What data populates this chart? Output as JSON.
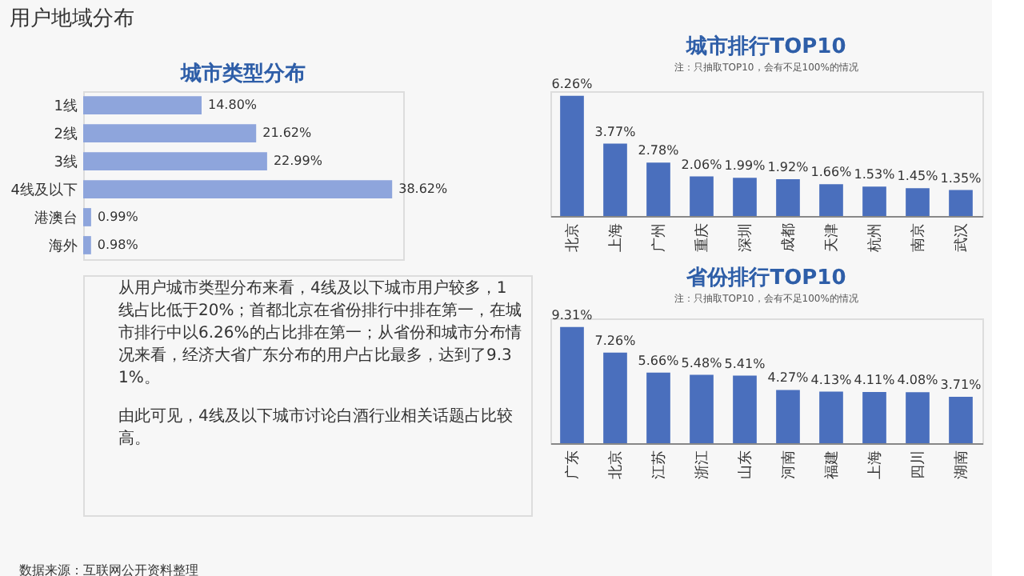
{
  "chart_data": [
    {
      "type": "bar",
      "orientation": "horizontal",
      "title": "城市类型分布",
      "categories": [
        "1线",
        "2线",
        "3线",
        "4线及以下",
        "港澳台",
        "海外"
      ],
      "values": [
        14.8,
        21.62,
        22.99,
        38.62,
        0.99,
        0.98
      ],
      "value_labels": [
        "14.80%",
        "21.62%",
        "22.99%",
        "38.62%",
        "0.99%",
        "0.98%"
      ],
      "color": "#8ea5dc",
      "tick_labels": "y",
      "annotations": [
        "用户地域分布",
        "从用户城市类型分布来看，4线及以下城市用户较多，1线占比低于20%；首都北京在省份排行中排在第一，在城市排行中以6.26%的占比排在第一；从省份和城市分布情况来看，经济大省广东分布的用户占比最多，达到了9.31%。",
        "由此可见，4线及以下城市讨论白酒行业相关话题占比较高。",
        "数据来源：互联网公开资料整理"
      ]
    },
    {
      "type": "bar",
      "title": "城市排行TOP10",
      "categories": [
        "北京",
        "上海",
        "广州",
        "重庆",
        "深圳",
        "成都",
        "天津",
        "杭州",
        "南京",
        "武汉"
      ],
      "values": [
        6.26,
        3.77,
        2.78,
        2.06,
        1.99,
        1.92,
        1.66,
        1.53,
        1.45,
        1.35
      ],
      "value_labels": [
        "6.26%",
        "3.77%",
        "2.78%",
        "2.06%",
        "1.99%",
        "1.92%",
        "1.66%",
        "1.53%",
        "1.45%",
        "1.35%"
      ],
      "color": "#4a6fbd",
      "tick_labels": "x",
      "annotations": [
        "注：只抽取TOP10，会有不足100%的情况"
      ]
    },
    {
      "type": "bar",
      "title": "省份排行TOP10",
      "categories": [
        "广东",
        "北京",
        "江苏",
        "浙江",
        "山东",
        "河南",
        "福建",
        "上海",
        "四川",
        "湖南"
      ],
      "values": [
        9.31,
        7.26,
        5.66,
        5.48,
        5.41,
        4.27,
        4.13,
        4.11,
        4.08,
        3.71
      ],
      "value_labels": [
        "9.31%",
        "7.26%",
        "5.66%",
        "5.48%",
        "5.41%",
        "4.27%",
        "4.13%",
        "4.11%",
        "4.08%",
        "3.71%"
      ],
      "color": "#4a6fbd",
      "tick_labels": "x",
      "annotations": [
        "注：只抽取TOP10，会有不足100%的情况"
      ]
    }
  ]
}
